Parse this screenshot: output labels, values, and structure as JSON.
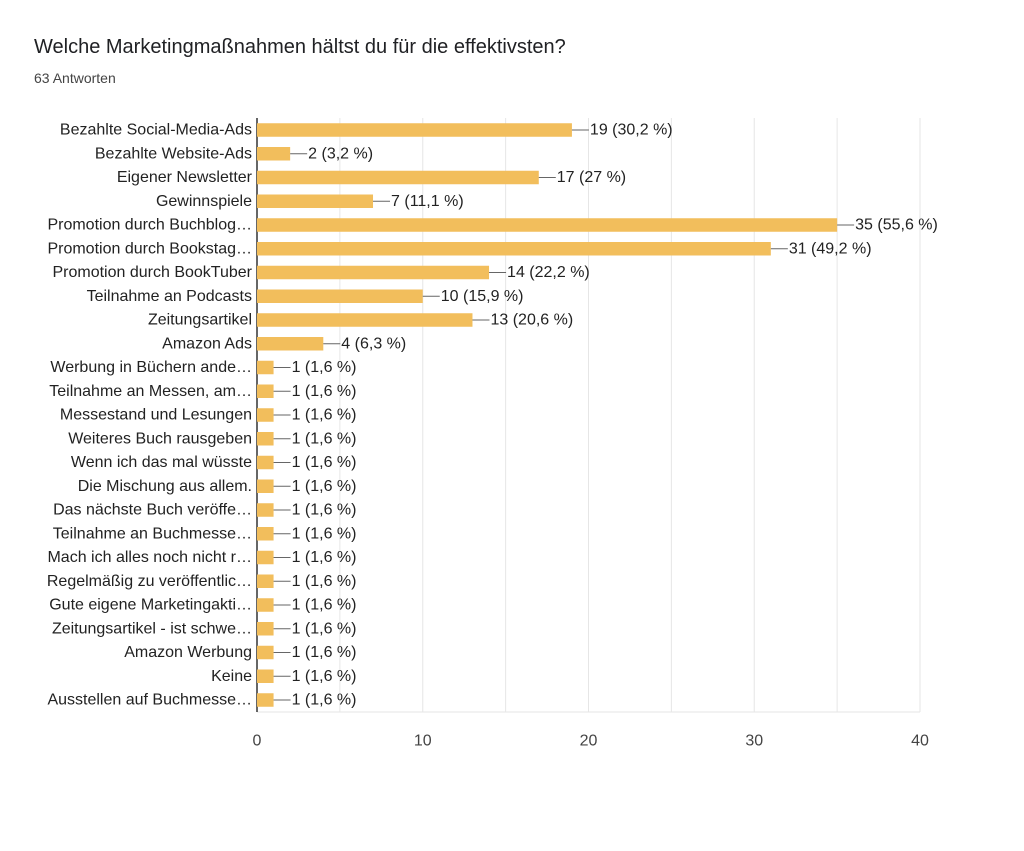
{
  "header": {
    "title": "Welche Marketingmaßnahmen hältst du für die effektivsten?",
    "subtitle": "63 Antworten"
  },
  "colors": {
    "bar": "#F2BE5C",
    "grid": "#e6e6e6",
    "axis": "#333333",
    "leader": "#666666"
  },
  "chart_data": {
    "type": "bar",
    "orientation": "horizontal",
    "title": "Welche Marketingmaßnahmen hältst du für die effektivsten?",
    "subtitle": "63 Antworten",
    "xlim": [
      0,
      40
    ],
    "ticks": [
      "0",
      "10",
      "20",
      "30",
      "40"
    ],
    "grid": true,
    "categories": [
      "Bezahlte Social-Media-Ads",
      "Bezahlte Website-Ads",
      "Eigener Newsletter",
      "Gewinnspiele",
      "Promotion durch Buchblog…",
      "Promotion durch Bookstag…",
      "Promotion durch BookTuber",
      "Teilnahme an Podcasts",
      "Zeitungsartikel",
      "Amazon Ads",
      "Werbung in Büchern ande…",
      "Teilnahme an Messen, am…",
      "Messestand und Lesungen",
      "Weiteres Buch rausgeben",
      "Wenn ich das mal wüsste",
      "Die Mischung aus allem.",
      "Das nächste Buch veröffe…",
      "Teilnahme an Buchmesse…",
      "Mach ich alles noch nicht r…",
      "Regelmäßig zu veröffentlic…",
      "Gute eigene Marketingakti…",
      "Zeitungsartikel - ist schwe…",
      "Amazon Werbung",
      "Keine",
      "Ausstellen auf Buchmesse…"
    ],
    "values": [
      19,
      2,
      17,
      7,
      35,
      31,
      14,
      10,
      13,
      4,
      1,
      1,
      1,
      1,
      1,
      1,
      1,
      1,
      1,
      1,
      1,
      1,
      1,
      1,
      1
    ],
    "labels": [
      "19 (30,2 %)",
      "2 (3,2 %)",
      "17 (27 %)",
      "7 (11,1 %)",
      "35 (55,6 %)",
      "31 (49,2 %)",
      "14 (22,2 %)",
      "10 (15,9 %)",
      "13 (20,6 %)",
      "4 (6,3 %)",
      "1 (1,6 %)",
      "1 (1,6 %)",
      "1 (1,6 %)",
      "1 (1,6 %)",
      "1 (1,6 %)",
      "1 (1,6 %)",
      "1 (1,6 %)",
      "1 (1,6 %)",
      "1 (1,6 %)",
      "1 (1,6 %)",
      "1 (1,6 %)",
      "1 (1,6 %)",
      "1 (1,6 %)",
      "1 (1,6 %)",
      "1 (1,6 %)"
    ]
  }
}
